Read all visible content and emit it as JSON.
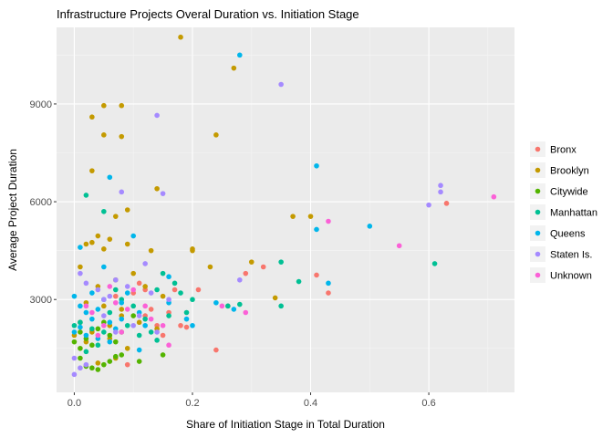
{
  "chart_data": {
    "type": "scatter",
    "title": "Infrastructure Projects Overal Duration vs. Initiation Stage",
    "xlabel": "Share of Initiation Stage in Total Duration",
    "ylabel": "Average Project Duration",
    "xlim": [
      -0.03,
      0.745
    ],
    "ylim": [
      150,
      11350
    ],
    "xticks": [
      0.0,
      0.2,
      0.4,
      0.6
    ],
    "xtick_labels": [
      "0.0",
      "0.2",
      "0.4",
      "0.6"
    ],
    "yticks": [
      3000,
      6000,
      9000
    ],
    "ytick_labels": [
      "3000",
      "6000",
      "9000"
    ],
    "grid": true,
    "legend_position": "right",
    "series": [
      {
        "name": "Bronx",
        "color": "#F8766D",
        "points": [
          [
            0.09,
            1000
          ],
          [
            0.1,
            3200
          ],
          [
            0.11,
            3500
          ],
          [
            0.12,
            3300
          ],
          [
            0.12,
            2500
          ],
          [
            0.13,
            2700
          ],
          [
            0.14,
            2200
          ],
          [
            0.15,
            1900
          ],
          [
            0.16,
            2600
          ],
          [
            0.17,
            3300
          ],
          [
            0.18,
            2200
          ],
          [
            0.19,
            2150
          ],
          [
            0.21,
            3300
          ],
          [
            0.24,
            1450
          ],
          [
            0.26,
            2800
          ],
          [
            0.29,
            3800
          ],
          [
            0.32,
            4000
          ],
          [
            0.41,
            3750
          ],
          [
            0.43,
            3200
          ],
          [
            0.63,
            5950
          ],
          [
            0.07,
            3100
          ],
          [
            0.03,
            2050
          ]
        ]
      },
      {
        "name": "Brooklyn",
        "color": "#C49A00",
        "points": [
          [
            0.18,
            11050
          ],
          [
            0.27,
            10100
          ],
          [
            0.03,
            8600
          ],
          [
            0.05,
            8950
          ],
          [
            0.08,
            8950
          ],
          [
            0.05,
            8050
          ],
          [
            0.08,
            8000
          ],
          [
            0.24,
            8050
          ],
          [
            0.03,
            6950
          ],
          [
            0.14,
            6400
          ],
          [
            0.37,
            5550
          ],
          [
            0.4,
            5550
          ],
          [
            0.09,
            5750
          ],
          [
            0.07,
            5550
          ],
          [
            0.02,
            4700
          ],
          [
            0.03,
            4750
          ],
          [
            0.04,
            4950
          ],
          [
            0.06,
            4850
          ],
          [
            0.09,
            4700
          ],
          [
            0.2,
            4550
          ],
          [
            0.13,
            4500
          ],
          [
            0.05,
            4550
          ],
          [
            0.23,
            4000
          ],
          [
            0.3,
            4150
          ],
          [
            0.34,
            3050
          ],
          [
            0.01,
            4000
          ],
          [
            0.04,
            3400
          ],
          [
            0.07,
            3600
          ],
          [
            0.1,
            3800
          ],
          [
            0.12,
            3400
          ],
          [
            0.02,
            2900
          ],
          [
            0.05,
            2800
          ],
          [
            0.08,
            2500
          ],
          [
            0.11,
            2300
          ],
          [
            0.14,
            2100
          ],
          [
            0.01,
            2300
          ],
          [
            0.03,
            2000
          ],
          [
            0.06,
            1800
          ],
          [
            0.09,
            1500
          ],
          [
            0.04,
            1050
          ],
          [
            0.0,
            1900
          ],
          [
            0.02,
            1700
          ],
          [
            0.06,
            2200
          ],
          [
            0.08,
            2700
          ],
          [
            0.15,
            3100
          ],
          [
            0.2,
            4500
          ],
          [
            0.07,
            1200
          ]
        ]
      },
      {
        "name": "Citywide",
        "color": "#53B400",
        "points": [
          [
            0.01,
            1200
          ],
          [
            0.02,
            950
          ],
          [
            0.03,
            900
          ],
          [
            0.04,
            850
          ],
          [
            0.05,
            1000
          ],
          [
            0.06,
            1100
          ],
          [
            0.07,
            1250
          ],
          [
            0.08,
            1300
          ],
          [
            0.11,
            1100
          ],
          [
            0.15,
            1300
          ],
          [
            0.01,
            2000
          ],
          [
            0.02,
            1800
          ],
          [
            0.03,
            1600
          ],
          [
            0.04,
            2100
          ],
          [
            0.05,
            2300
          ],
          [
            0.06,
            1900
          ],
          [
            0.07,
            1700
          ],
          [
            0.08,
            2000
          ],
          [
            0.0,
            1700
          ],
          [
            0.01,
            1500
          ],
          [
            0.1,
            2500
          ]
        ]
      },
      {
        "name": "Manhattan",
        "color": "#00C094",
        "points": [
          [
            0.02,
            6200
          ],
          [
            0.05,
            5700
          ],
          [
            0.35,
            4150
          ],
          [
            0.38,
            3550
          ],
          [
            0.35,
            2800
          ],
          [
            0.61,
            4100
          ],
          [
            0.15,
            3800
          ],
          [
            0.17,
            3500
          ],
          [
            0.16,
            2500
          ],
          [
            0.14,
            3300
          ],
          [
            0.18,
            3200
          ],
          [
            0.26,
            2800
          ],
          [
            0.28,
            2850
          ],
          [
            0.01,
            2300
          ],
          [
            0.03,
            2100
          ],
          [
            0.05,
            2000
          ],
          [
            0.06,
            2600
          ],
          [
            0.08,
            3000
          ],
          [
            0.1,
            2800
          ],
          [
            0.12,
            2400
          ],
          [
            0.13,
            2000
          ],
          [
            0.11,
            1900
          ],
          [
            0.04,
            1600
          ],
          [
            0.02,
            1400
          ],
          [
            0.0,
            2200
          ],
          [
            0.07,
            3300
          ],
          [
            0.09,
            2200
          ],
          [
            0.19,
            2600
          ],
          [
            0.2,
            3000
          ],
          [
            0.14,
            1750
          ]
        ]
      },
      {
        "name": "Queens",
        "color": "#00B6EB",
        "points": [
          [
            0.28,
            10500
          ],
          [
            0.06,
            6750
          ],
          [
            0.41,
            7100
          ],
          [
            0.01,
            4600
          ],
          [
            0.1,
            4950
          ],
          [
            0.41,
            5150
          ],
          [
            0.5,
            5250
          ],
          [
            0.43,
            3500
          ],
          [
            0.0,
            3100
          ],
          [
            0.01,
            2800
          ],
          [
            0.02,
            2600
          ],
          [
            0.03,
            2400
          ],
          [
            0.04,
            2700
          ],
          [
            0.05,
            3000
          ],
          [
            0.06,
            2300
          ],
          [
            0.07,
            2100
          ],
          [
            0.08,
            2900
          ],
          [
            0.09,
            3200
          ],
          [
            0.11,
            2600
          ],
          [
            0.12,
            2200
          ],
          [
            0.16,
            2900
          ],
          [
            0.19,
            2400
          ],
          [
            0.2,
            2200
          ],
          [
            0.24,
            2900
          ],
          [
            0.27,
            2700
          ],
          [
            0.02,
            1900
          ],
          [
            0.04,
            1800
          ],
          [
            0.06,
            1700
          ],
          [
            0.08,
            2400
          ],
          [
            0.0,
            2000
          ],
          [
            0.01,
            2150
          ],
          [
            0.03,
            3200
          ],
          [
            0.11,
            1450
          ],
          [
            0.05,
            4000
          ],
          [
            0.16,
            3700
          ]
        ]
      },
      {
        "name": "Staten Is.",
        "color": "#A58AFF",
        "points": [
          [
            0.35,
            9600
          ],
          [
            0.14,
            8650
          ],
          [
            0.08,
            6300
          ],
          [
            0.15,
            6250
          ],
          [
            0.6,
            5900
          ],
          [
            0.62,
            6500
          ],
          [
            0.62,
            6300
          ],
          [
            0.01,
            3800
          ],
          [
            0.02,
            3500
          ],
          [
            0.04,
            3300
          ],
          [
            0.06,
            3100
          ],
          [
            0.07,
            3600
          ],
          [
            0.09,
            3400
          ],
          [
            0.12,
            4100
          ],
          [
            0.13,
            3200
          ],
          [
            0.16,
            3000
          ],
          [
            0.1,
            2200
          ],
          [
            0.0,
            1200
          ],
          [
            0.0,
            700
          ],
          [
            0.01,
            900
          ],
          [
            0.02,
            1000
          ],
          [
            0.05,
            2500
          ],
          [
            0.07,
            2000
          ],
          [
            0.11,
            2500
          ],
          [
            0.28,
            3600
          ],
          [
            0.14,
            2000
          ],
          [
            0.05,
            3000
          ]
        ]
      },
      {
        "name": "Unknown",
        "color": "#FB61D7",
        "points": [
          [
            0.71,
            6150
          ],
          [
            0.43,
            5400
          ],
          [
            0.55,
            4650
          ],
          [
            0.25,
            2800
          ],
          [
            0.29,
            2600
          ],
          [
            0.12,
            2800
          ],
          [
            0.09,
            2700
          ],
          [
            0.05,
            2200
          ],
          [
            0.07,
            2900
          ],
          [
            0.1,
            3300
          ],
          [
            0.13,
            2400
          ],
          [
            0.16,
            1600
          ],
          [
            0.03,
            2600
          ],
          [
            0.04,
            1900
          ],
          [
            0.02,
            2800
          ],
          [
            0.15,
            2200
          ],
          [
            0.06,
            3400
          ],
          [
            0.08,
            2000
          ]
        ]
      }
    ]
  }
}
